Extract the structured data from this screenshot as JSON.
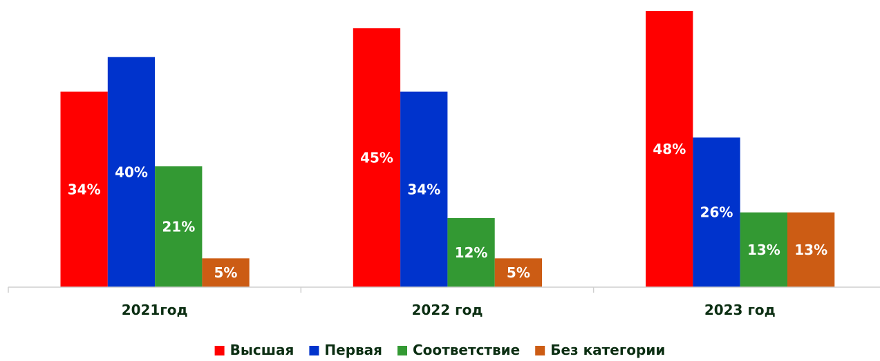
{
  "chart_data": {
    "type": "bar",
    "categories": [
      "2021год",
      "2022 год",
      "2023 год"
    ],
    "series": [
      {
        "name": "Высшая",
        "color": "#ff0000",
        "values": [
          34,
          45,
          48
        ],
        "labels": [
          "34%",
          "45%",
          "48%"
        ]
      },
      {
        "name": "Первая",
        "color": "#0033cc",
        "values": [
          40,
          34,
          26
        ],
        "labels": [
          "40%",
          "34%",
          "26%"
        ]
      },
      {
        "name": "Соответствие",
        "color": "#339933",
        "values": [
          21,
          12,
          13
        ],
        "labels": [
          "21%",
          "12%",
          "13%"
        ]
      },
      {
        "name": "Без категории",
        "color": "#cc5c14",
        "values": [
          5,
          5,
          13
        ],
        "labels": [
          "5%",
          "5%",
          "13%"
        ]
      }
    ],
    "ylim": [
      0,
      48
    ],
    "grid": false,
    "legend_position": "bottom"
  }
}
